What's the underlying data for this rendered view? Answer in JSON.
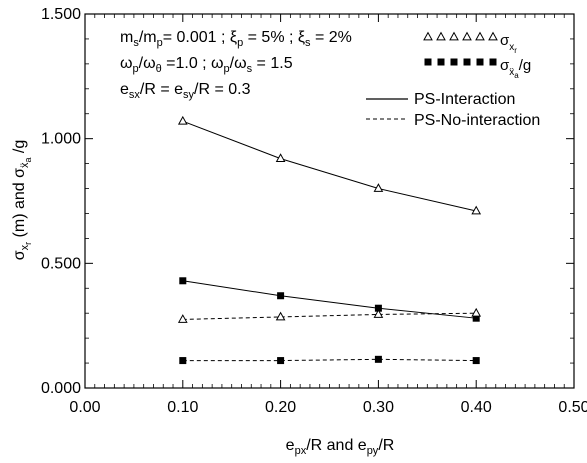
{
  "chart_data": {
    "type": "line",
    "x": [
      0.1,
      0.2,
      0.3,
      0.4
    ],
    "xlim": [
      0.0,
      0.5
    ],
    "ylim": [
      0.0,
      1.5
    ],
    "x_ticks": [
      "0.00",
      "0.10",
      "0.20",
      "0.30",
      "0.40",
      "0.50"
    ],
    "y_ticks": [
      "0.000",
      "0.500",
      "1.000",
      "1.500"
    ],
    "xlabel": "e_px/R and e_py/R",
    "ylabel": "σ_xr (m) and σ_ẍa /g",
    "grid": false,
    "annotations": [
      "m_s/m_p= 0.001 ; ξ_p = 5% ; ξ_s = 2%",
      "ω_p/ω_θ =1.0 ; ω_p/ω_s = 1.5",
      "e_sx/R = e_sy/R = 0.3"
    ],
    "legend": {
      "placement": "top-right",
      "marker_entries": [
        "σ_xr",
        "σ_ẍa/g"
      ],
      "line_entries": [
        "PS-Interaction",
        "PS-No-interaction"
      ]
    },
    "series": [
      {
        "quantity": "σ_xr",
        "linestyle": "solid",
        "marker": "open-triangle",
        "values": [
          1.07,
          0.92,
          0.8,
          0.71
        ]
      },
      {
        "quantity": "σ_ẍa/g",
        "linestyle": "solid",
        "marker": "filled-square",
        "values": [
          0.43,
          0.37,
          0.32,
          0.28
        ]
      },
      {
        "quantity": "σ_xr",
        "linestyle": "dashed",
        "marker": "open-triangle",
        "values": [
          0.275,
          0.285,
          0.295,
          0.3
        ]
      },
      {
        "quantity": "σ_ẍa/g",
        "linestyle": "dashed",
        "marker": "filled-square",
        "values": [
          0.11,
          0.11,
          0.115,
          0.11
        ]
      }
    ]
  }
}
